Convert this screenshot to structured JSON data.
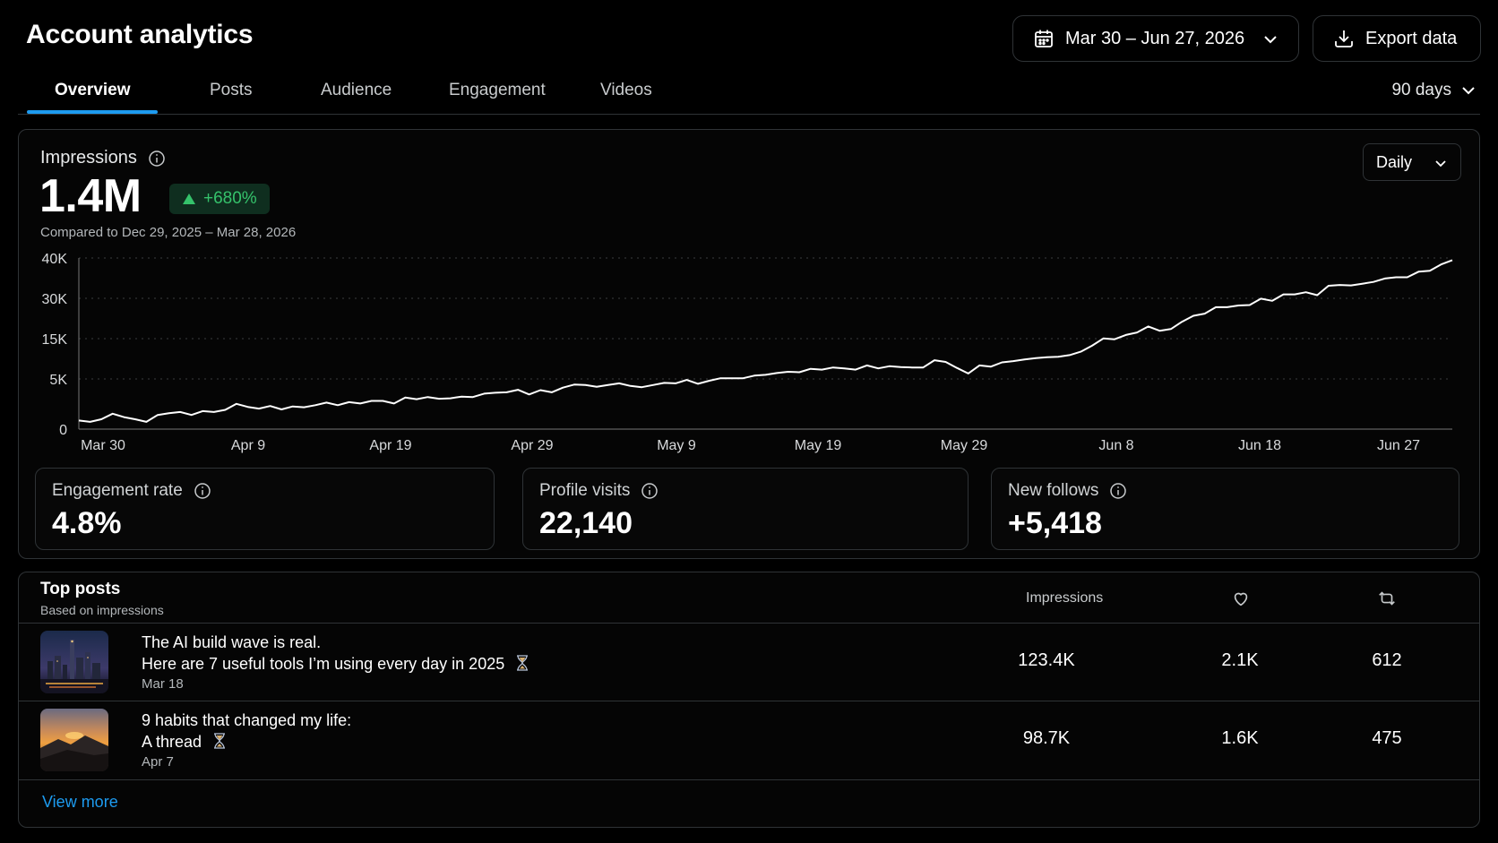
{
  "header": {
    "title": "Account analytics",
    "date_range_label": "Mar 30 – Jun 27, 2026",
    "export_label": "Export data"
  },
  "tabs": [
    {
      "label": "Overview",
      "active": true
    },
    {
      "label": "Posts",
      "active": false
    },
    {
      "label": "Audience",
      "active": false
    },
    {
      "label": "Engagement",
      "active": false
    },
    {
      "label": "Videos",
      "active": false
    }
  ],
  "range_select": "90 days",
  "impressions": {
    "label": "Impressions",
    "value": "1.4M",
    "delta": "+680%",
    "compare_text": "Compared to Dec 29, 2025 – Mar 28, 2026",
    "granularity": "Daily"
  },
  "chart_data": {
    "type": "line",
    "ylim": [
      0,
      40000
    ],
    "y_tick_labels": [
      "40K",
      "30K",
      "15K",
      "5K",
      "0"
    ],
    "x_tick_labels": [
      "Mar 30",
      "Apr 9",
      "Apr 19",
      "Apr 29",
      "May 9",
      "May 19",
      "May 29",
      "Jun 8",
      "Jun 18",
      "Jun 27"
    ],
    "grid": true,
    "series": [
      {
        "values": [
          2000,
          1700,
          2300,
          3600,
          2800,
          2300,
          1700,
          3300,
          3700,
          4000,
          3300,
          4200,
          4000,
          4500,
          5900,
          5200,
          4800,
          5400,
          4600,
          5300,
          5100,
          5600,
          6200,
          5600,
          6300,
          6000,
          6600,
          6600,
          6000,
          7400,
          7000,
          7500,
          7100,
          7200,
          7600,
          7500,
          8300,
          8500,
          8600,
          9200,
          8100,
          9100,
          8600,
          9700,
          10400,
          10300,
          9900,
          10300,
          10700,
          10100,
          9800,
          10300,
          10800,
          10700,
          11500,
          10600,
          11300,
          11900,
          11900,
          11900,
          12500,
          12700,
          13100,
          13400,
          13300,
          14100,
          13900,
          14400,
          14200,
          13900,
          14900,
          14200,
          14700,
          14500,
          14400,
          14400,
          16100,
          15700,
          14300,
          13000,
          14900,
          14600,
          15600,
          15900,
          16300,
          16600,
          16800,
          16900,
          17300,
          18100,
          19500,
          21200,
          21000,
          22000,
          22600,
          24000,
          23000,
          23400,
          25100,
          26500,
          27000,
          28500,
          28500,
          28900,
          29000,
          30500,
          30000,
          31500,
          31500,
          32000,
          31300,
          33500,
          33700,
          33600,
          34000,
          34400,
          35200,
          35500,
          35500,
          36800,
          37000,
          38500,
          39500
        ]
      }
    ]
  },
  "metrics": [
    {
      "label": "Engagement rate",
      "value": "4.8%"
    },
    {
      "label": "Profile visits",
      "value": "22,140"
    },
    {
      "label": "New follows",
      "value": "+5,418"
    }
  ],
  "top_posts": {
    "title": "Top posts",
    "subtitle": "Based on impressions",
    "col_impressions": "Impressions",
    "rows": [
      {
        "line1": "The AI build wave is real.",
        "line2": "Here are 7 useful tools I’m using every day in 2025",
        "date": "Mar 18",
        "impressions": "123.4K",
        "likes": "2.1K",
        "reposts": "612"
      },
      {
        "line1": "9 habits that changed my life:",
        "line2": "A thread",
        "date": "Apr 7",
        "impressions": "98.7K",
        "likes": "1.6K",
        "reposts": "475"
      }
    ],
    "view_more": "View more"
  },
  "colors": {
    "accent": "#1d9bf0",
    "positive": "#35c26b",
    "border": "#2f3336"
  }
}
